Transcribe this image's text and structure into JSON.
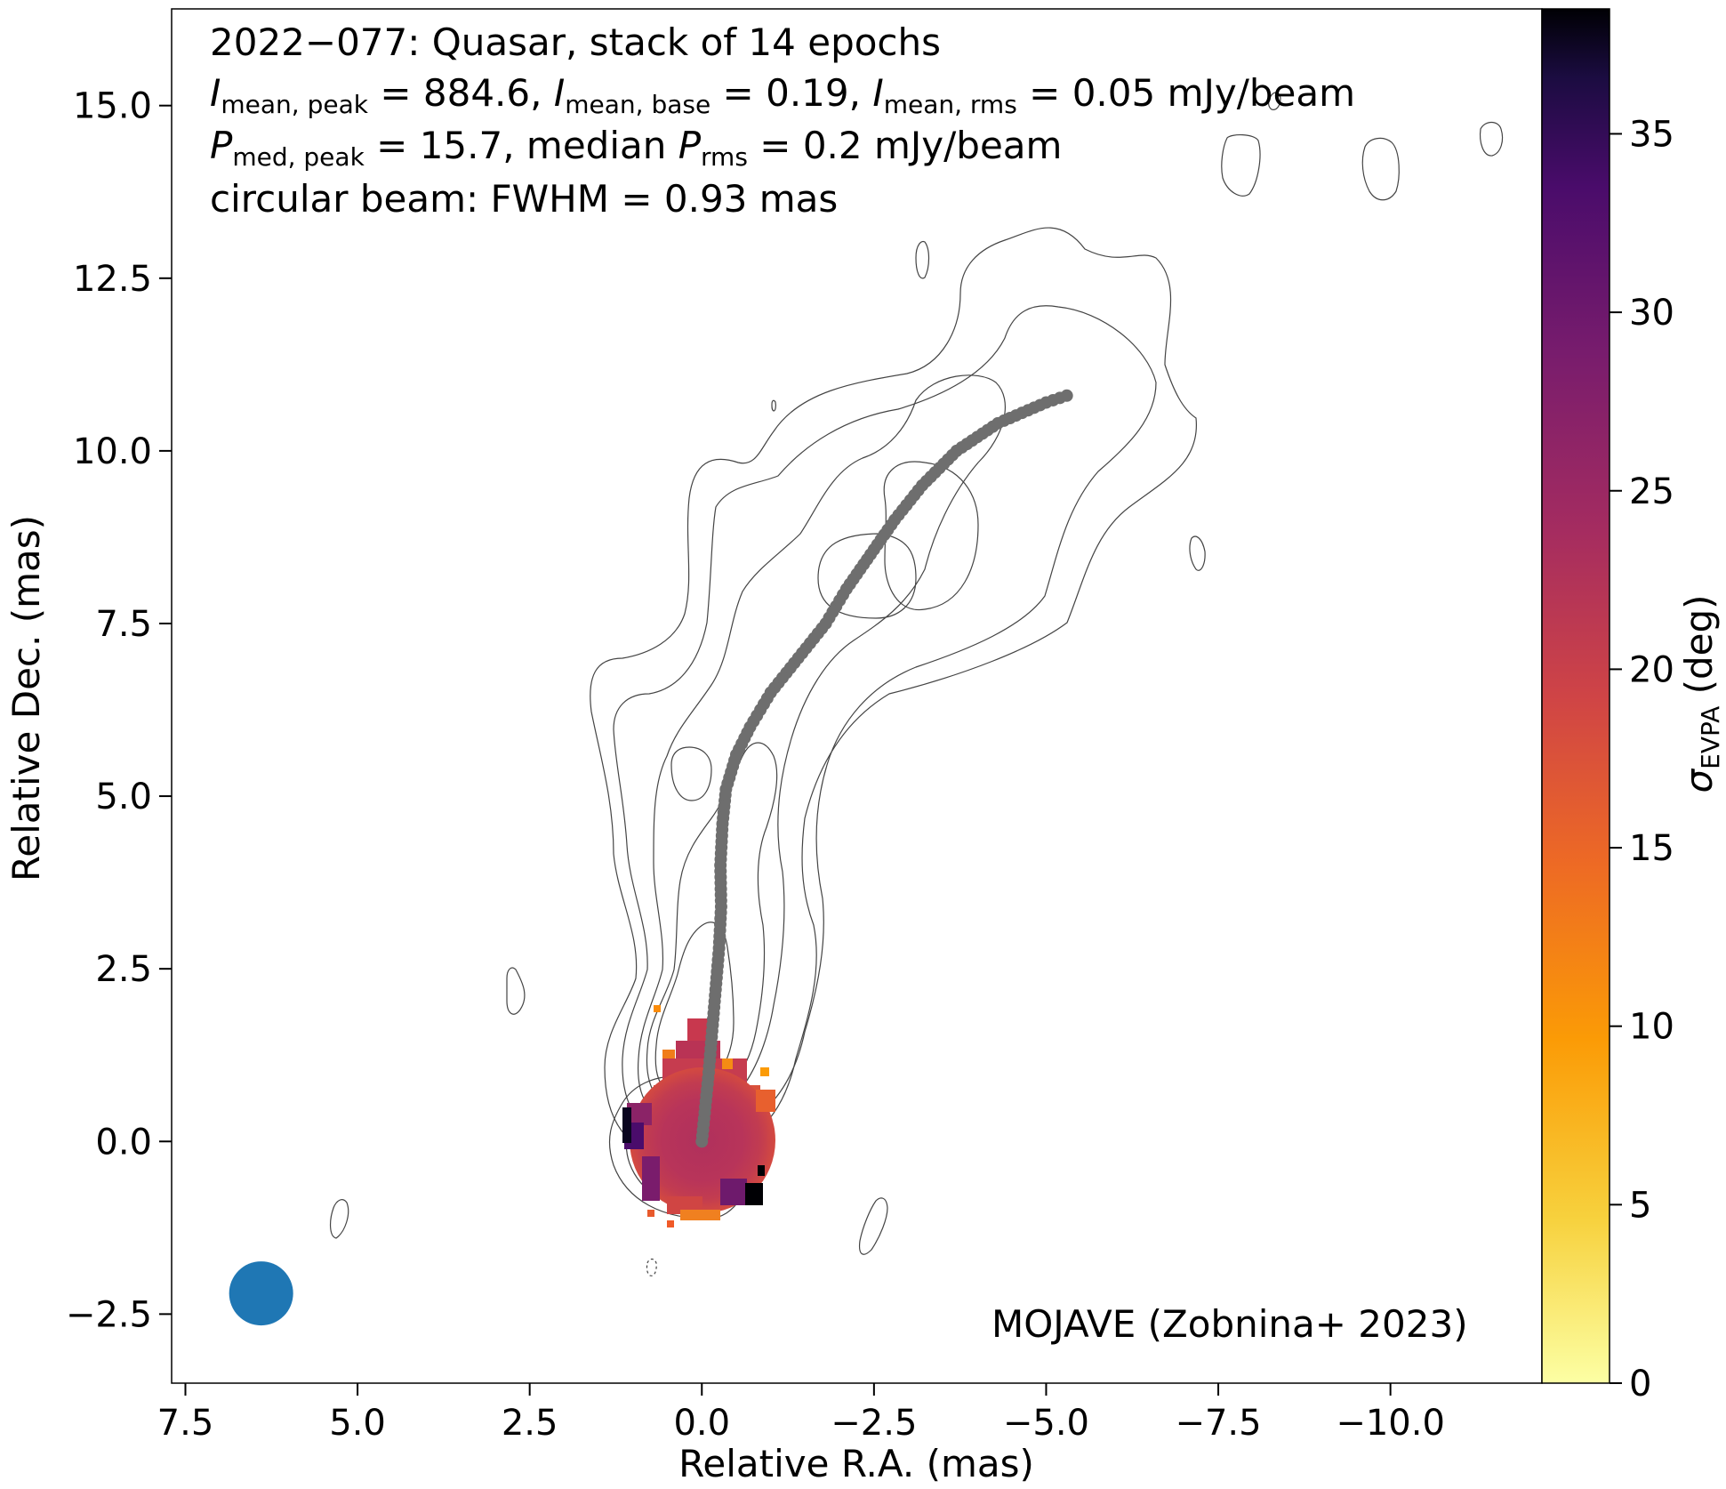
{
  "chart_data": {
    "type": "heatmap",
    "title_lines": [
      "2022−077: Quasar, stack of 14 epochs",
      "I_mean,peak = 884.6, I_mean,base = 0.19, I_mean,rms = 0.05 mJy/beam",
      "P_med,peak = 15.7, median P_rms = 0.2 mJy/beam",
      "circular beam: FWHM = 0.93 mas"
    ],
    "stats": {
      "source": "2022−077",
      "class": "Quasar",
      "epochs": 14,
      "I_mean_peak": 884.6,
      "I_mean_base": 0.19,
      "I_mean_rms": 0.05,
      "P_med_peak": 15.7,
      "P_rms_median": 0.2,
      "flux_unit": "mJy/beam",
      "beam_fwhm_mas": 0.93
    },
    "xlabel": "Relative R.A. (mas)",
    "ylabel": "Relative Dec. (mas)",
    "xlim": [
      7.7,
      -12.2
    ],
    "ylim": [
      -3.5,
      16.4
    ],
    "xticks": [
      7.5,
      5.0,
      2.5,
      0.0,
      -2.5,
      -5.0,
      -7.5,
      -10.0
    ],
    "xtick_labels": [
      "7.5",
      "5.0",
      "2.5",
      "0.0",
      "−2.5",
      "−5.0",
      "−7.5",
      "−10.0"
    ],
    "yticks": [
      -2.5,
      0.0,
      2.5,
      5.0,
      7.5,
      10.0,
      12.5,
      15.0
    ],
    "ytick_labels": [
      "−2.5",
      "0.0",
      "2.5",
      "5.0",
      "7.5",
      "10.0",
      "12.5",
      "15.0"
    ],
    "colorbar": {
      "label": "σ_EVPA (deg)",
      "range": [
        0,
        38.5
      ],
      "ticks": [
        0,
        5,
        10,
        15,
        20,
        25,
        30,
        35
      ],
      "tick_labels": [
        "0",
        "5",
        "10",
        "15",
        "20",
        "25",
        "30",
        "35"
      ],
      "colormap": "inferno_r"
    },
    "ridgeline": [
      [
        0.0,
        0.0
      ],
      [
        -0.05,
        0.5
      ],
      [
        -0.1,
        1.0
      ],
      [
        -0.15,
        1.6
      ],
      [
        -0.2,
        2.2
      ],
      [
        -0.25,
        2.8
      ],
      [
        -0.28,
        3.4
      ],
      [
        -0.27,
        4.0
      ],
      [
        -0.3,
        4.6
      ],
      [
        -0.35,
        5.1
      ],
      [
        -0.5,
        5.6
      ],
      [
        -0.7,
        6.0
      ],
      [
        -1.0,
        6.5
      ],
      [
        -1.4,
        7.0
      ],
      [
        -1.8,
        7.5
      ],
      [
        -2.1,
        8.0
      ],
      [
        -2.45,
        8.5
      ],
      [
        -2.8,
        9.0
      ],
      [
        -3.2,
        9.5
      ],
      [
        -3.7,
        10.0
      ],
      [
        -4.3,
        10.4
      ],
      [
        -5.0,
        10.7
      ],
      [
        -5.3,
        10.8
      ]
    ],
    "polarization_blob": {
      "center": [
        0.0,
        0.05
      ],
      "radius": 1.1
    },
    "beam": {
      "position_mas": [
        6.4,
        -2.2
      ],
      "color": "#1f77b4"
    },
    "credit": "MOJAVE (Zobnina+ 2023)"
  },
  "colors": {
    "ridgeline": "#6e6e6e",
    "contour": "#444444",
    "beam": "#1f77b4"
  }
}
